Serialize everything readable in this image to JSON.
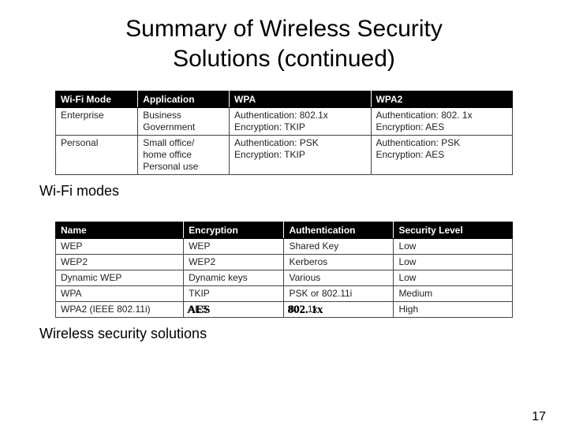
{
  "title_line1": "Summary of Wireless Security",
  "title_line2": "Solutions (continued)",
  "table1": {
    "headers": [
      "Wi-Fi Mode",
      "Application",
      "WPA",
      "WPA2"
    ],
    "rows": [
      [
        "Enterprise",
        "Business\nGovernment",
        "Authentication: 802.1x\nEncryption: TKIP",
        "Authentication: 802. 1x\nEncryption: AES"
      ],
      [
        "Personal",
        "Small office/\nhome office\nPersonal use",
        "Authentication: PSK\nEncryption: TKIP",
        "Authentication: PSK\nEncryption: AES"
      ]
    ]
  },
  "caption1": "Wi-Fi modes",
  "table2": {
    "headers": [
      "Name",
      "Encryption",
      "Authentication",
      "Security Level"
    ],
    "rows": [
      [
        "WEP",
        "WEP",
        "Shared Key",
        "Low"
      ],
      [
        "WEP2",
        "WEP2",
        "Kerberos",
        "Low"
      ],
      [
        "Dynamic WEP",
        "Dynamic keys",
        "Various",
        "Low"
      ],
      [
        "WPA",
        "TKIP",
        "PSK or 802.11i",
        "Medium"
      ],
      [
        "WPA2 (IEEE 802.11i)",
        "AES",
        "802.1x",
        "High"
      ]
    ]
  },
  "overlay_encryption": "AES",
  "overlay_auth": "802. 1x",
  "caption2": "Wireless security solutions",
  "page_number": "17"
}
